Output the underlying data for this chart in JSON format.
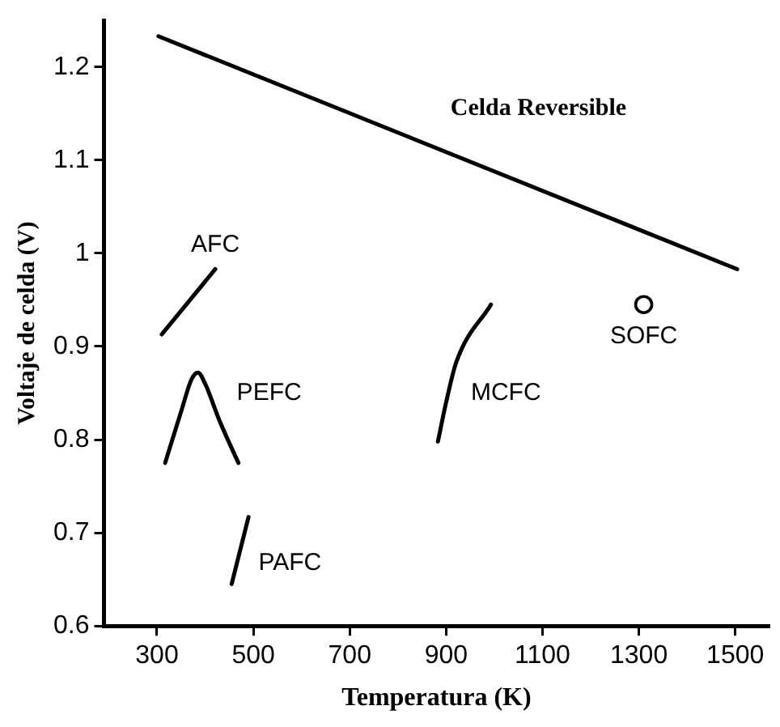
{
  "chart_data": {
    "type": "line",
    "xlabel": "Temperatura (K)",
    "ylabel": "Voltaje de celda (V)",
    "xlim": [
      190,
      1570
    ],
    "ylim": [
      0.6,
      1.25
    ],
    "xticks": [
      300,
      500,
      700,
      900,
      1100,
      1300,
      1500
    ],
    "yticks": [
      0.6,
      0.7,
      0.8,
      0.9,
      1.0,
      1.1,
      1.2
    ],
    "grid": false,
    "legend": false,
    "marker": "none",
    "line_style": "solid",
    "series": [
      {
        "name": "Celda Reversible",
        "color": "#000000",
        "x": [
          303,
          1504
        ],
        "values": [
          1.233,
          0.983
        ]
      },
      {
        "name": "AFC",
        "color": "#000000",
        "x": [
          310,
          421
        ],
        "values": [
          0.913,
          0.983
        ]
      },
      {
        "name": "PEFC",
        "color": "#000000",
        "x": [
          317,
          350,
          372,
          385,
          400,
          430,
          469
        ],
        "values": [
          0.775,
          0.83,
          0.865,
          0.872,
          0.86,
          0.82,
          0.775
        ]
      },
      {
        "name": "MCFC",
        "color": "#000000",
        "x": [
          883,
          900,
          921,
          993
        ],
        "values": [
          0.798,
          0.84,
          0.883,
          0.945
        ]
      },
      {
        "name": "PAFC",
        "color": "#000000",
        "x": [
          455,
          490
        ],
        "values": [
          0.645,
          0.717
        ]
      },
      {
        "name": "SOFC",
        "type": "scatter",
        "marker": "circle",
        "color": "#000000",
        "x": [
          1310
        ],
        "values": [
          0.945
        ]
      }
    ]
  }
}
